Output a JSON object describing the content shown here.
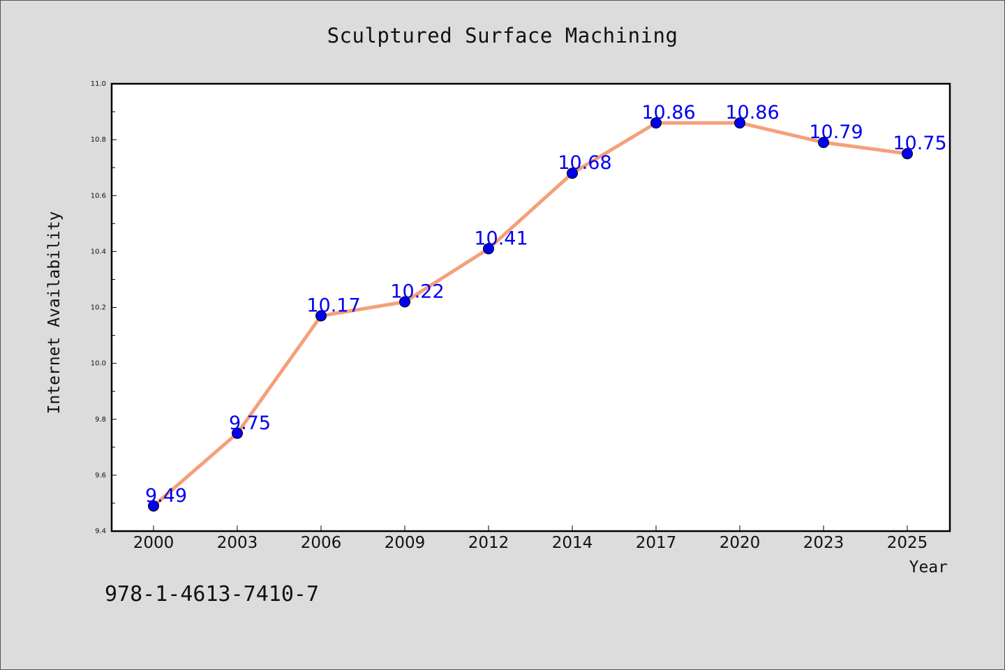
{
  "chart_data": {
    "type": "line",
    "title": "Sculptured Surface Machining",
    "xlabel": "Year",
    "ylabel": "Internet Availability",
    "categories": [
      "2000",
      "2003",
      "2006",
      "2009",
      "2012",
      "2014",
      "2017",
      "2020",
      "2023",
      "2025"
    ],
    "values": [
      9.49,
      9.75,
      10.17,
      10.22,
      10.41,
      10.68,
      10.86,
      10.86,
      10.79,
      10.75
    ],
    "value_labels": [
      "9.49",
      "9.75",
      "10.17",
      "10.22",
      "10.41",
      "10.68",
      "10.86",
      "10.86",
      "10.79",
      "10.75"
    ],
    "ylim": [
      9.4,
      11.0
    ],
    "yticks": [
      "9.4",
      "9.6",
      "9.8",
      "10.0",
      "10.2",
      "10.4",
      "10.6",
      "10.8",
      "11.0"
    ],
    "ytick_values": [
      9.4,
      9.6,
      9.8,
      10.0,
      10.2,
      10.4,
      10.6,
      10.8,
      11.0
    ],
    "grid": false,
    "legend": "none",
    "line_color": "#f4a07a",
    "marker_color": "#0000ee",
    "label_color": "#0000ee"
  },
  "footer": {
    "code": "978-1-4613-7410-7"
  }
}
